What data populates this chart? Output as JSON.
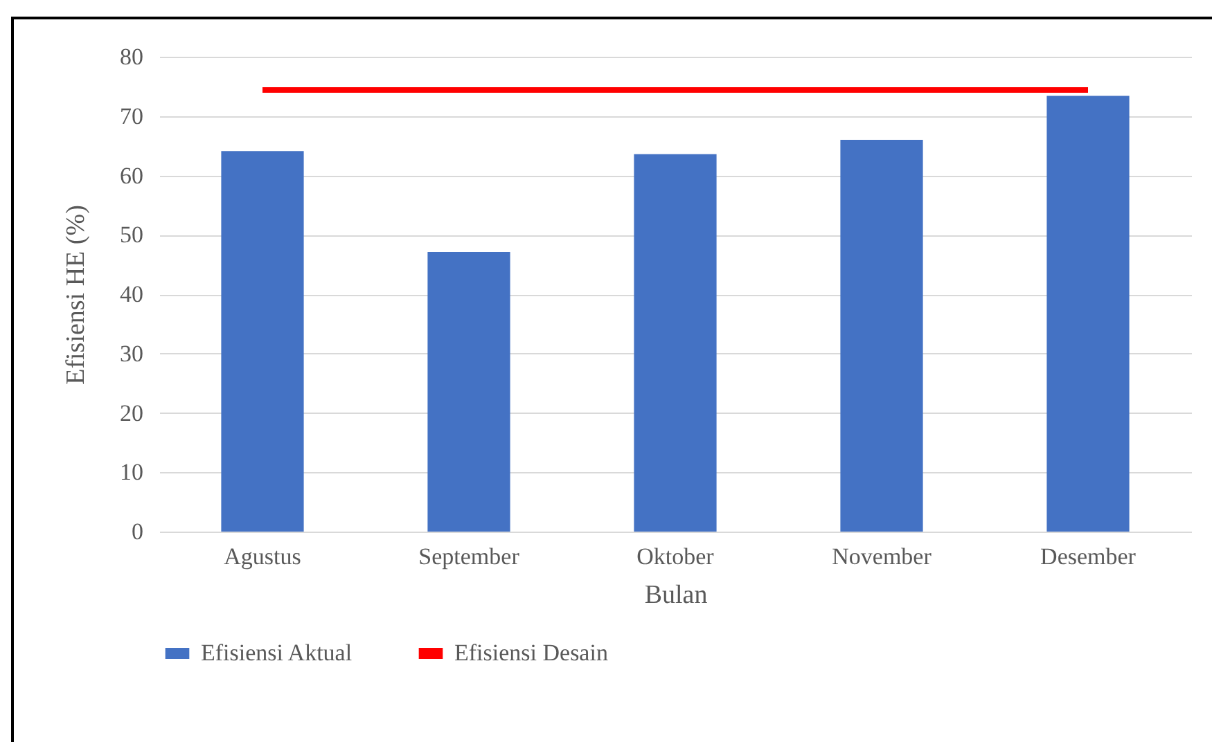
{
  "chart_data": {
    "type": "bar",
    "xlabel": "Bulan",
    "ylabel": "Efisiensi HE (%)",
    "categories": [
      "Agustus",
      "September",
      "Oktober",
      "November",
      "Desember"
    ],
    "series": [
      {
        "name": "Efisiensi Aktual",
        "color": "#4472c4",
        "values": [
          64.1,
          47.1,
          63.6,
          66,
          73.4
        ]
      },
      {
        "name": "Efisiensi Desain",
        "type": "line",
        "color": "#ff0000",
        "values": [
          74.4,
          74.4,
          74.4,
          74.4,
          74.4
        ]
      }
    ],
    "ylim": [
      0,
      80
    ],
    "yticks": [
      0,
      10,
      20,
      30,
      40,
      50,
      60,
      70,
      80
    ],
    "grid": "y",
    "legend": "bottom"
  }
}
